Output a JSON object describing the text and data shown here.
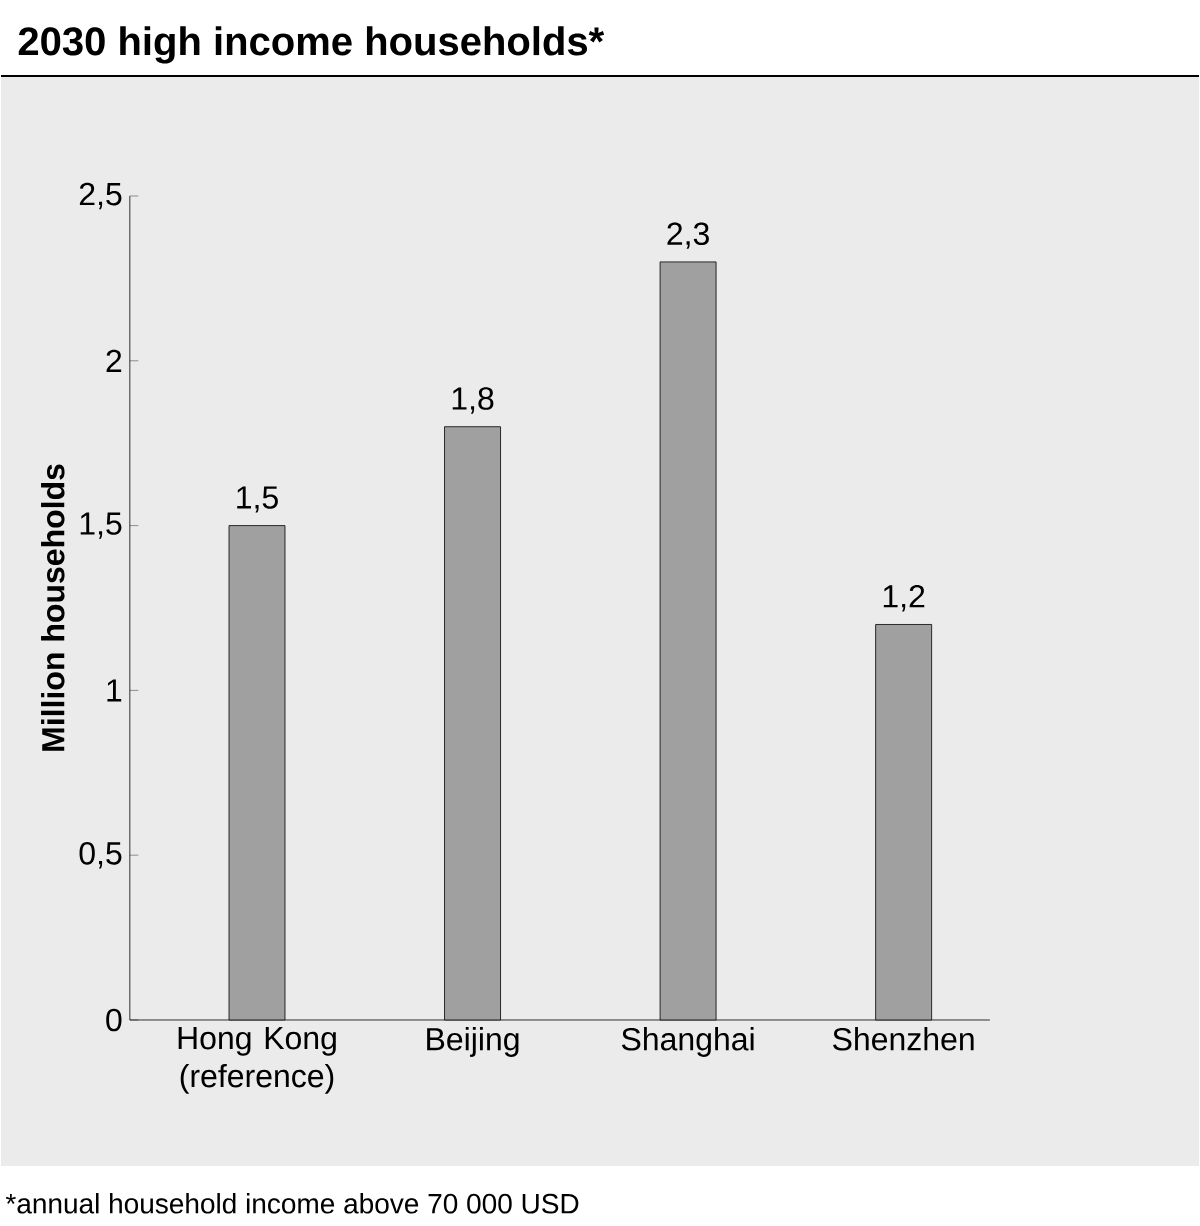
{
  "chart_data": {
    "type": "bar",
    "title": "2030 high income households*",
    "ylabel": "Million households",
    "categories": [
      "Hong Kong (reference)",
      "Beijing",
      "Shanghai",
      "Shenzhen"
    ],
    "values": [
      1.5,
      1.8,
      2.3,
      1.2
    ],
    "value_labels": [
      "1,5",
      "1,8",
      "2,3",
      "1,2"
    ],
    "color": "#a0a0a0",
    "ylim": [
      0,
      2.5
    ],
    "yticks": [
      {
        "value": 0,
        "label": "0"
      },
      {
        "value": 0.5,
        "label": "0,5"
      },
      {
        "value": 1,
        "label": "1"
      },
      {
        "value": 1.5,
        "label": "1,5"
      },
      {
        "value": 2,
        "label": "2"
      },
      {
        "value": 2.5,
        "label": "2,5"
      }
    ],
    "grid": false,
    "annotations": [
      "*annual household income above 70 000 USD"
    ]
  }
}
